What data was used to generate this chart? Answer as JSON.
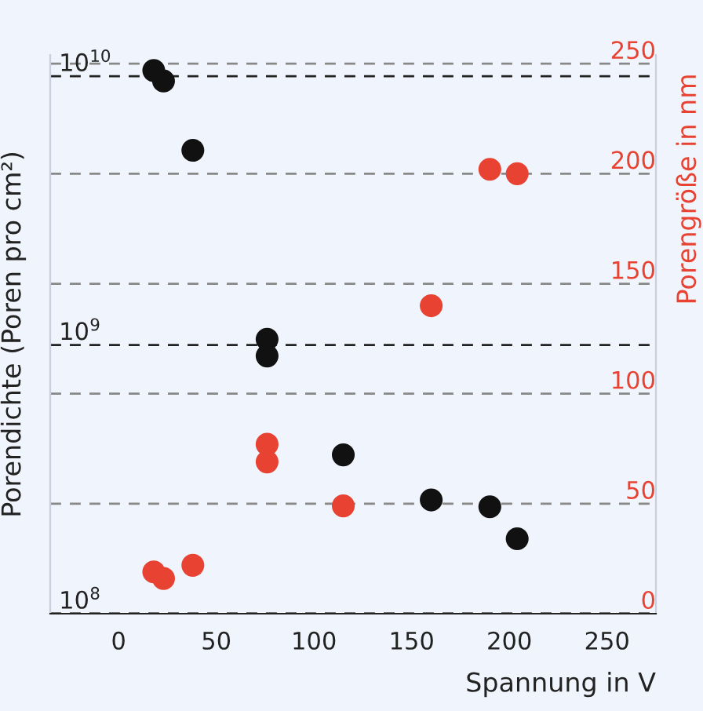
{
  "chart_data": {
    "type": "scatter",
    "xlabel": "Spannung in V",
    "ylabel": "Porendichte (Poren pro cm²)",
    "y2label": "Porengröße in nm",
    "xlim": [
      -35,
      275
    ],
    "xticks": [
      0,
      50,
      100,
      150,
      200,
      250
    ],
    "log": "y",
    "ylim": [
      100000000,
      12000000000
    ],
    "yticks": [
      {
        "value": 100000000,
        "label": "10$^{8}$"
      },
      {
        "value": 1000000000,
        "label": "10$^{9}$"
      },
      {
        "value": 10000000000,
        "label": "10$^{10}$"
      }
    ],
    "y2lim": [
      0,
      254
    ],
    "y2ticks": [
      0,
      50,
      100,
      150,
      200,
      250
    ],
    "marker": "circle",
    "grid": "y",
    "series": [
      {
        "color": "#111111",
        "axis": "y",
        "x": [
          18,
          23,
          38,
          76,
          76,
          115,
          160,
          190,
          204
        ],
        "values": [
          10500000000,
          9600000000,
          5300000000,
          1050000000,
          910000000,
          390000000,
          265000000,
          250000000,
          190000000
        ]
      },
      {
        "color": "#e84332",
        "axis": "y2",
        "x": [
          18,
          23,
          38,
          76,
          76,
          115,
          160,
          190,
          204
        ],
        "values": [
          19,
          16,
          22,
          77,
          69,
          49,
          140,
          202,
          200
        ]
      }
    ]
  }
}
